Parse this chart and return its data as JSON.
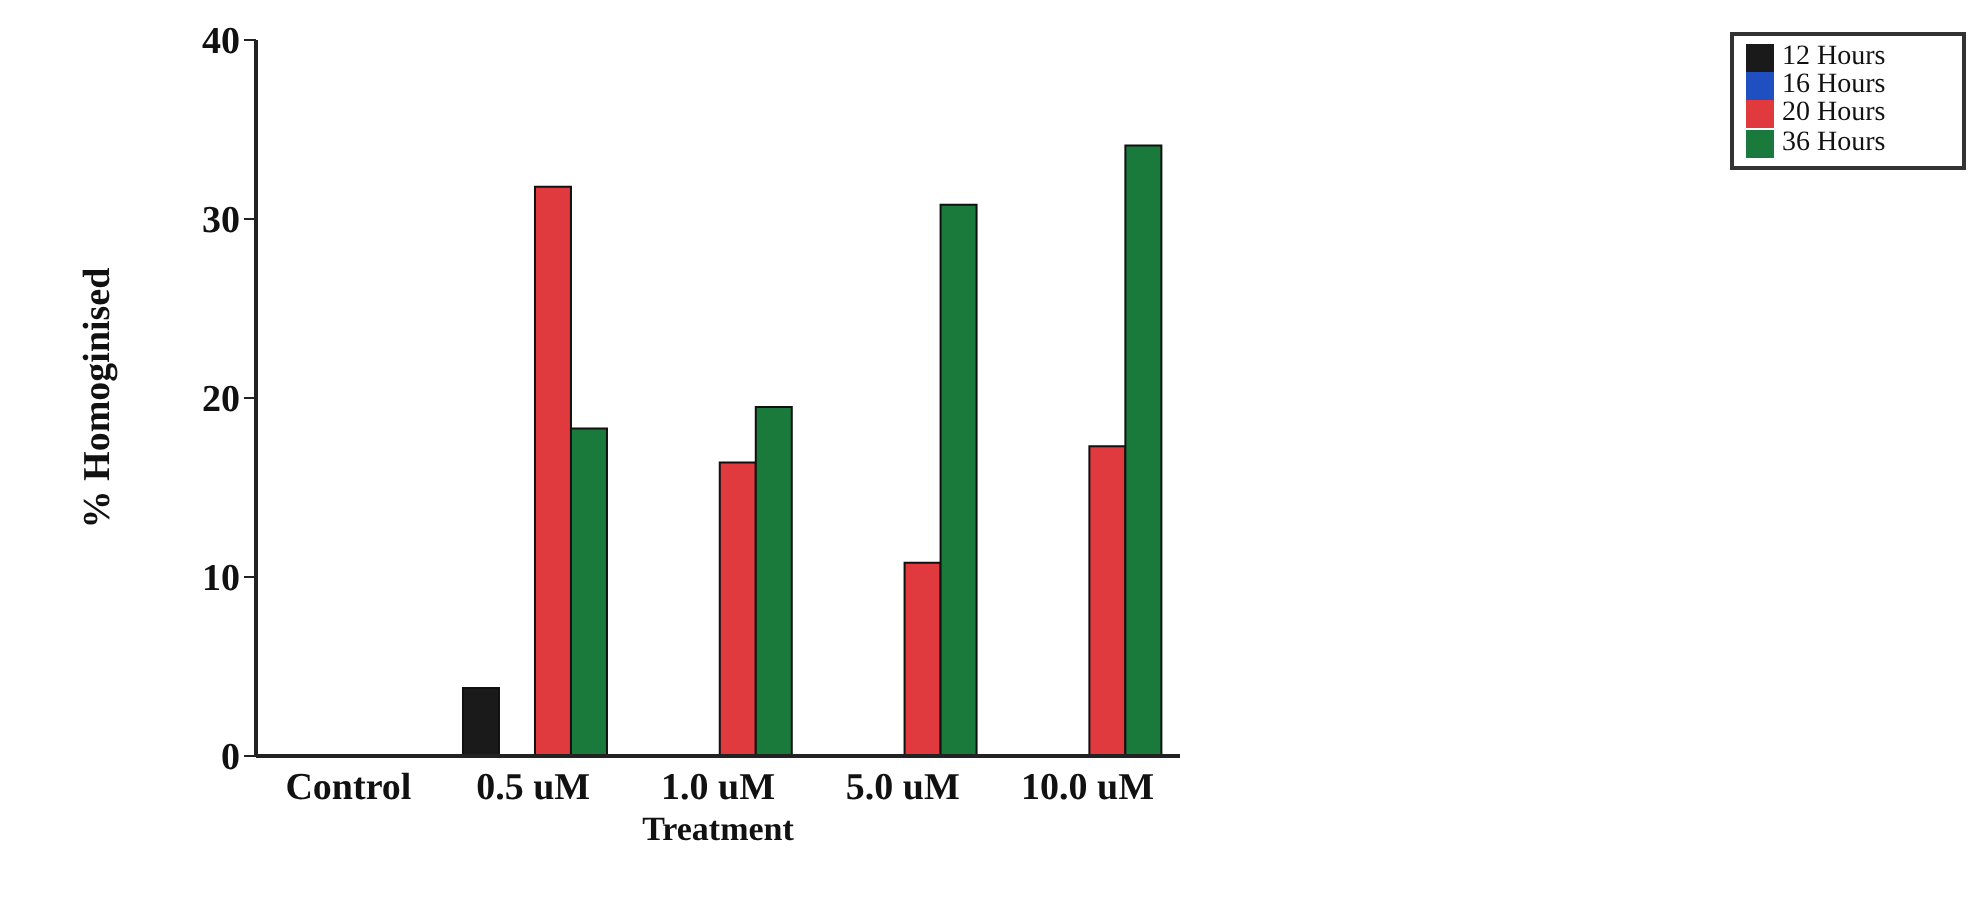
{
  "chart_data": {
    "type": "bar",
    "xlabel": "Treatment",
    "ylabel": "% Homoginised",
    "categories": [
      "Control",
      "0.5  uM",
      "1.0  uM",
      "5.0  uM",
      "10.0  uM"
    ],
    "series": [
      {
        "name": "12 Hours",
        "color": "#1a1a1a",
        "values": [
          null,
          3.8,
          null,
          null,
          null
        ]
      },
      {
        "name": "16 Hours",
        "color": "#1f4fc0",
        "values": [
          null,
          null,
          null,
          null,
          null
        ]
      },
      {
        "name": "20 Hours",
        "color": "#e0393e",
        "values": [
          null,
          31.8,
          16.4,
          10.8,
          17.3
        ]
      },
      {
        "name": "36 Hours",
        "color": "#1a7a3c",
        "values": [
          null,
          18.3,
          19.5,
          30.8,
          34.1
        ]
      }
    ],
    "ylim": [
      0,
      40
    ],
    "yticks": [
      0,
      10,
      20,
      30,
      40
    ],
    "legend": "top right"
  }
}
